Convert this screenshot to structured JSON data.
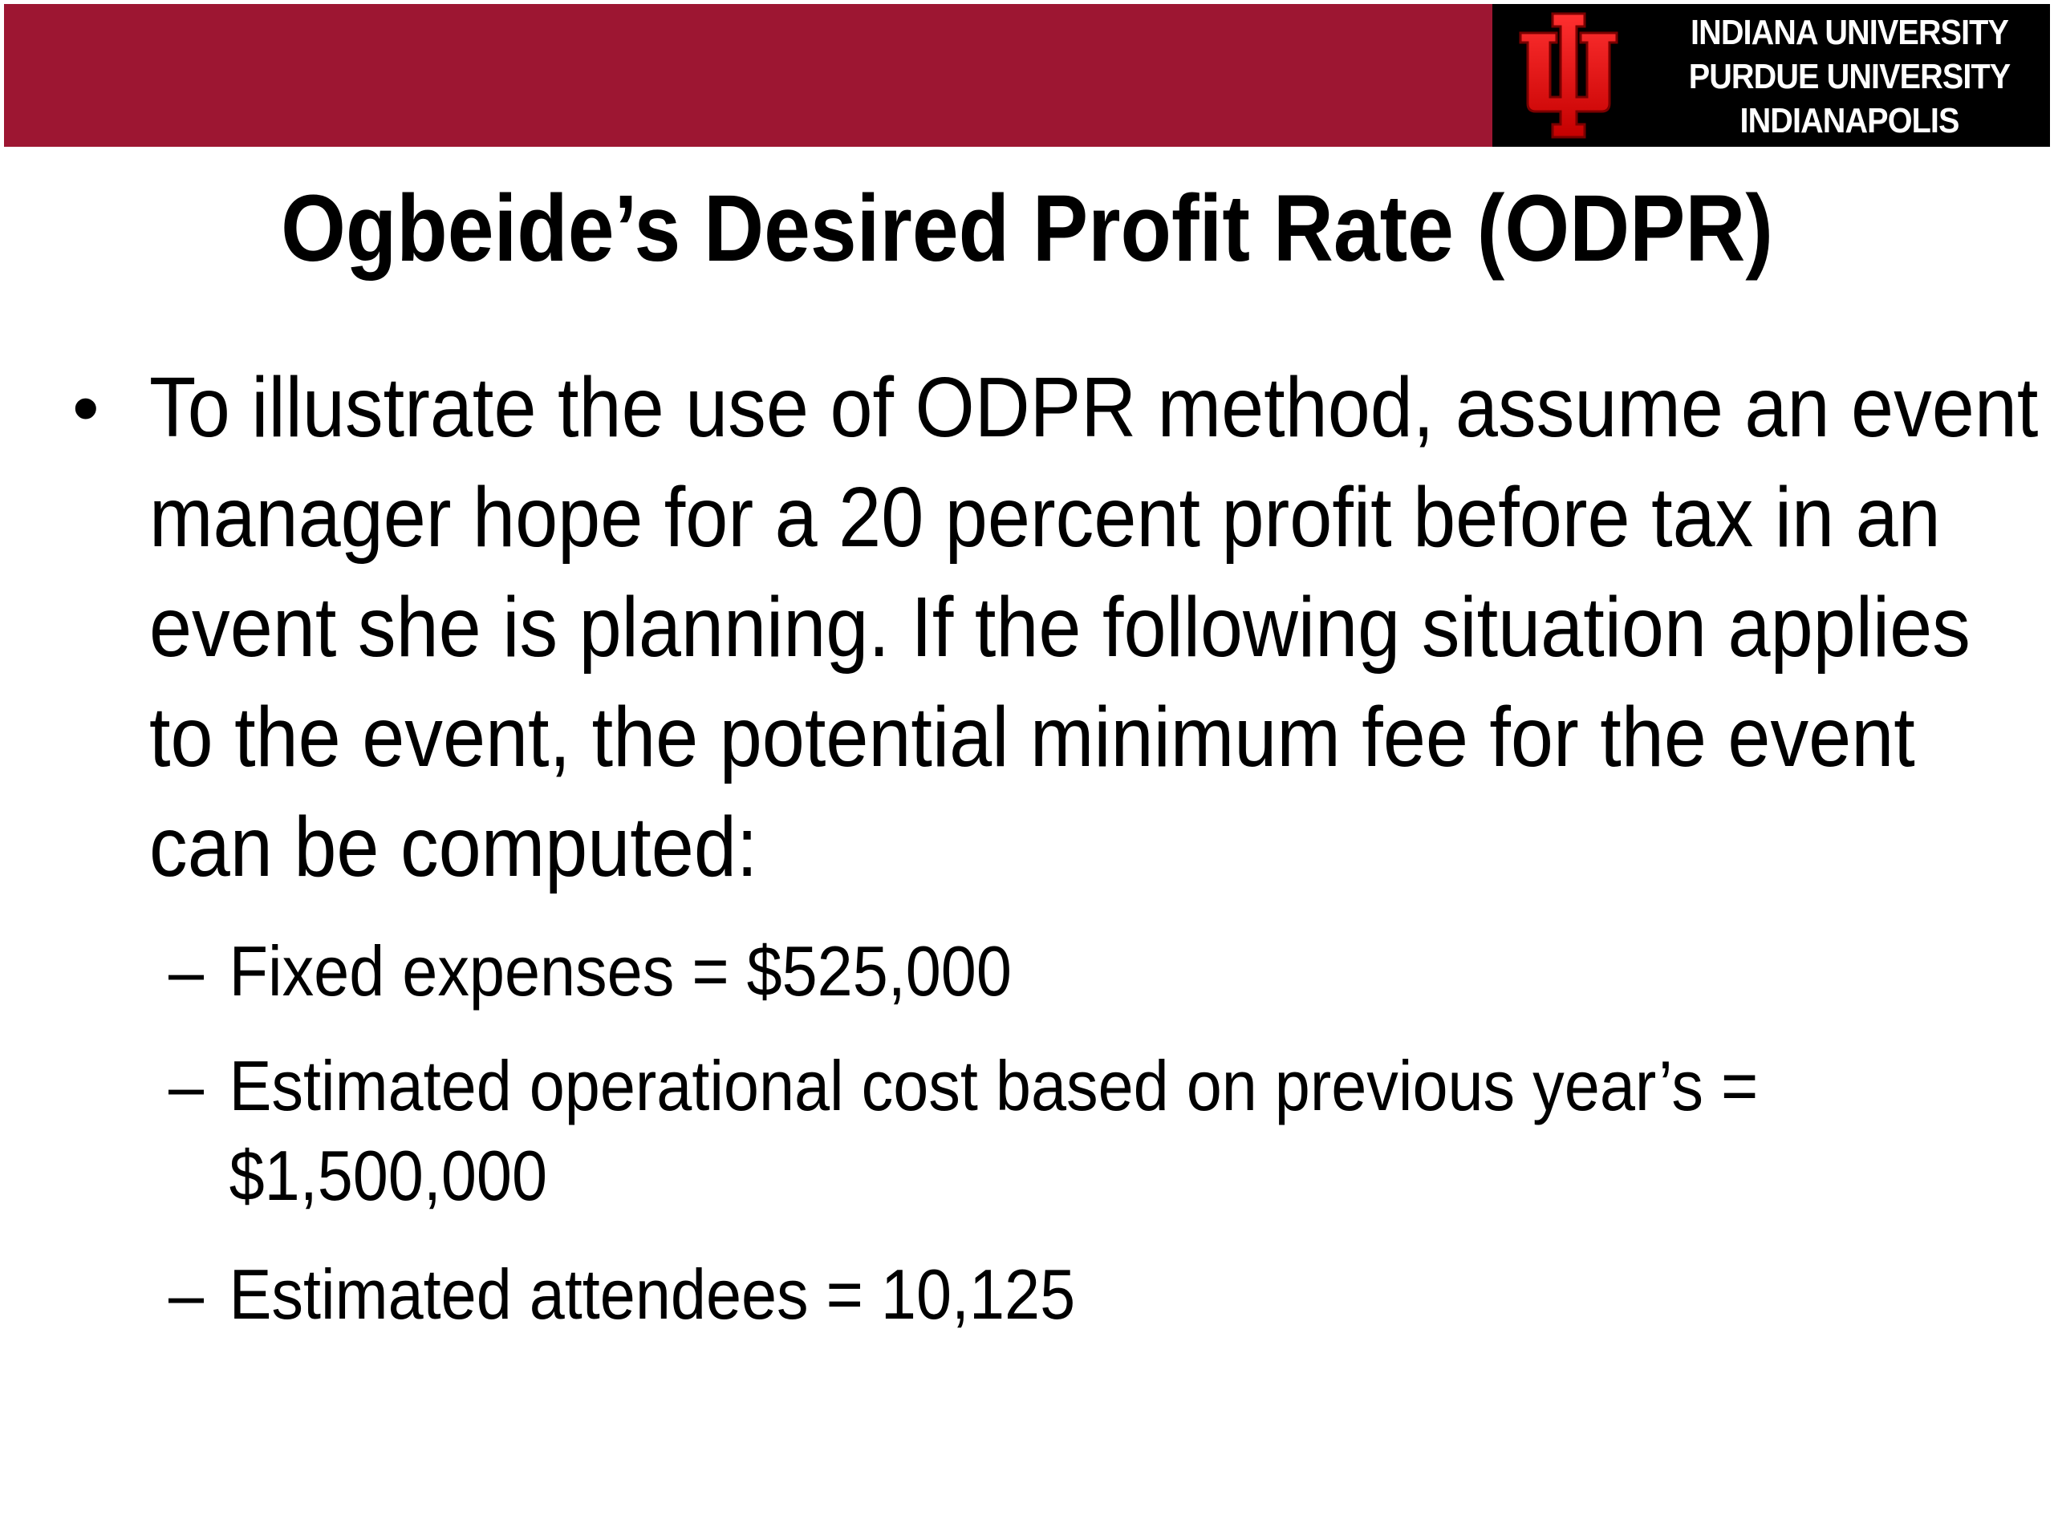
{
  "header": {
    "brand_color": "#9d1632",
    "logo_icon": "iu-trident-icon",
    "logo_lines": [
      "INDIANA UNIVERSITY",
      "PURDUE UNIVERSITY",
      "INDIANAPOLIS"
    ]
  },
  "title": "Ogbeide’s Desired Profit Rate (ODPR)",
  "body": {
    "bullet_symbol": "•",
    "lines": [
      "To illustrate the use of ODPR method, assume an event",
      "manager hope for a 20 percent profit before tax in an",
      "event she is planning. If the following situation applies",
      "to the event, the potential minimum fee for the event",
      "can be computed:"
    ],
    "sub_dash": "–",
    "sub_items": [
      {
        "lines": [
          "Fixed expenses = $525,000"
        ]
      },
      {
        "lines": [
          "Estimated operational cost based on previous year’s =",
          "$1,500,000"
        ]
      },
      {
        "lines": [
          "Estimated attendees = 10,125"
        ]
      }
    ]
  }
}
